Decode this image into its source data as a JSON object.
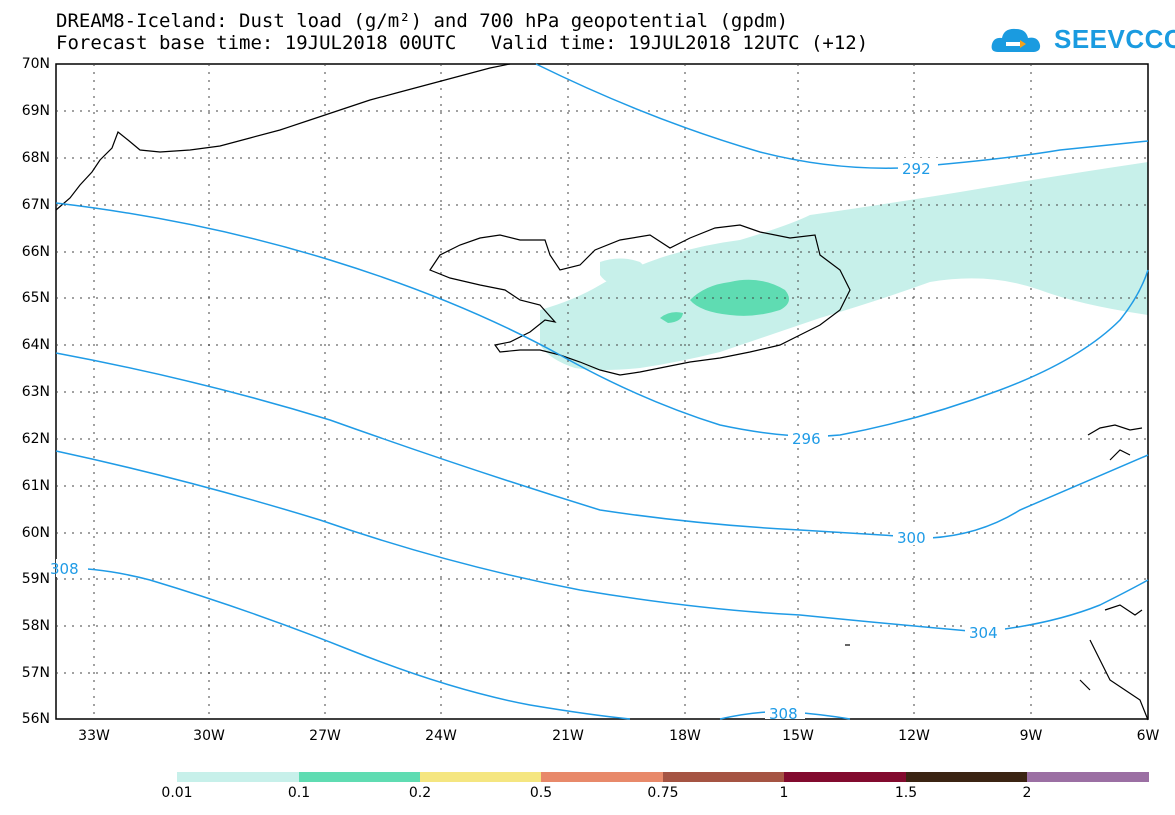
{
  "title": {
    "line1": "DREAM8-Iceland: Dust load (g/m²) and 700 hPa geopotential (gpdm)",
    "line2": "Forecast base time: 19JUL2018 00UTC   Valid time: 19JUL2018 12UTC (+12)"
  },
  "logo": {
    "text": "SEEVCCC",
    "color": "#1a9be0"
  },
  "axes": {
    "lat_labels": [
      "70N",
      "69N",
      "68N",
      "67N",
      "66N",
      "65N",
      "64N",
      "63N",
      "62N",
      "61N",
      "60N",
      "59N",
      "58N",
      "57N",
      "56N"
    ],
    "lon_labels": [
      "33W",
      "30W",
      "27W",
      "24W",
      "21W",
      "18W",
      "15W",
      "12W",
      "9W",
      "6W"
    ]
  },
  "contours": {
    "color": "#1f9be6",
    "labels": [
      "292",
      "296",
      "300",
      "304",
      "308",
      "308"
    ]
  },
  "legend": {
    "colors": [
      "#c7f0ea",
      "#5fdcb2",
      "#f5e680",
      "#e8896a",
      "#a55443",
      "#820a2e",
      "#3b2413",
      "#9b6fa3"
    ],
    "labels": [
      "0.01",
      "0.1",
      "0.2",
      "0.5",
      "0.75",
      "1",
      "1.5",
      "2"
    ]
  }
}
